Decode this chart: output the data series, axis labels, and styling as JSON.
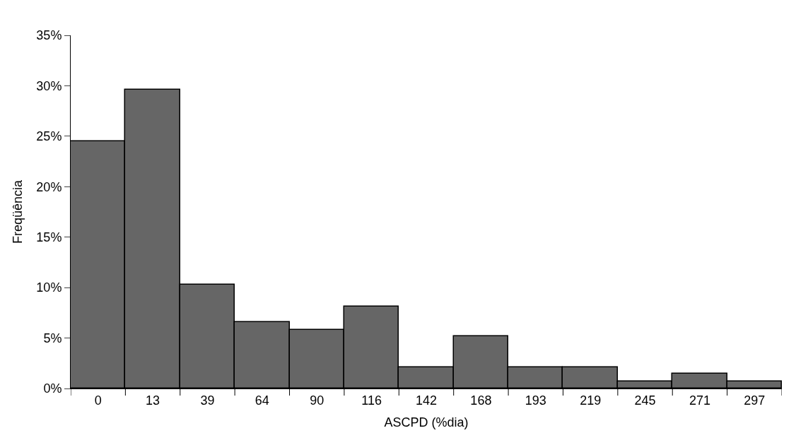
{
  "chart_data": {
    "type": "bar",
    "xlabel": "ASCPD (%dia)",
    "ylabel": "Freqüência",
    "categories": [
      "0",
      "13",
      "39",
      "64",
      "90",
      "116",
      "142",
      "168",
      "193",
      "219",
      "245",
      "271",
      "297"
    ],
    "values": [
      24.5,
      29.6,
      10.3,
      6.6,
      5.8,
      8.1,
      2.1,
      5.2,
      2.1,
      2.1,
      0.7,
      1.5,
      0.7
    ],
    "color": "#666666",
    "ylim": [
      0,
      35
    ],
    "yticks": [
      {
        "value": 0,
        "label": "0%"
      },
      {
        "value": 5,
        "label": "5%"
      },
      {
        "value": 10,
        "label": "10%"
      },
      {
        "value": 15,
        "label": "15%"
      },
      {
        "value": 20,
        "label": "20%"
      },
      {
        "value": 25,
        "label": "25%"
      },
      {
        "value": 30,
        "label": "30%"
      },
      {
        "value": 35,
        "label": "35%"
      }
    ],
    "grid": false,
    "legend": false
  }
}
